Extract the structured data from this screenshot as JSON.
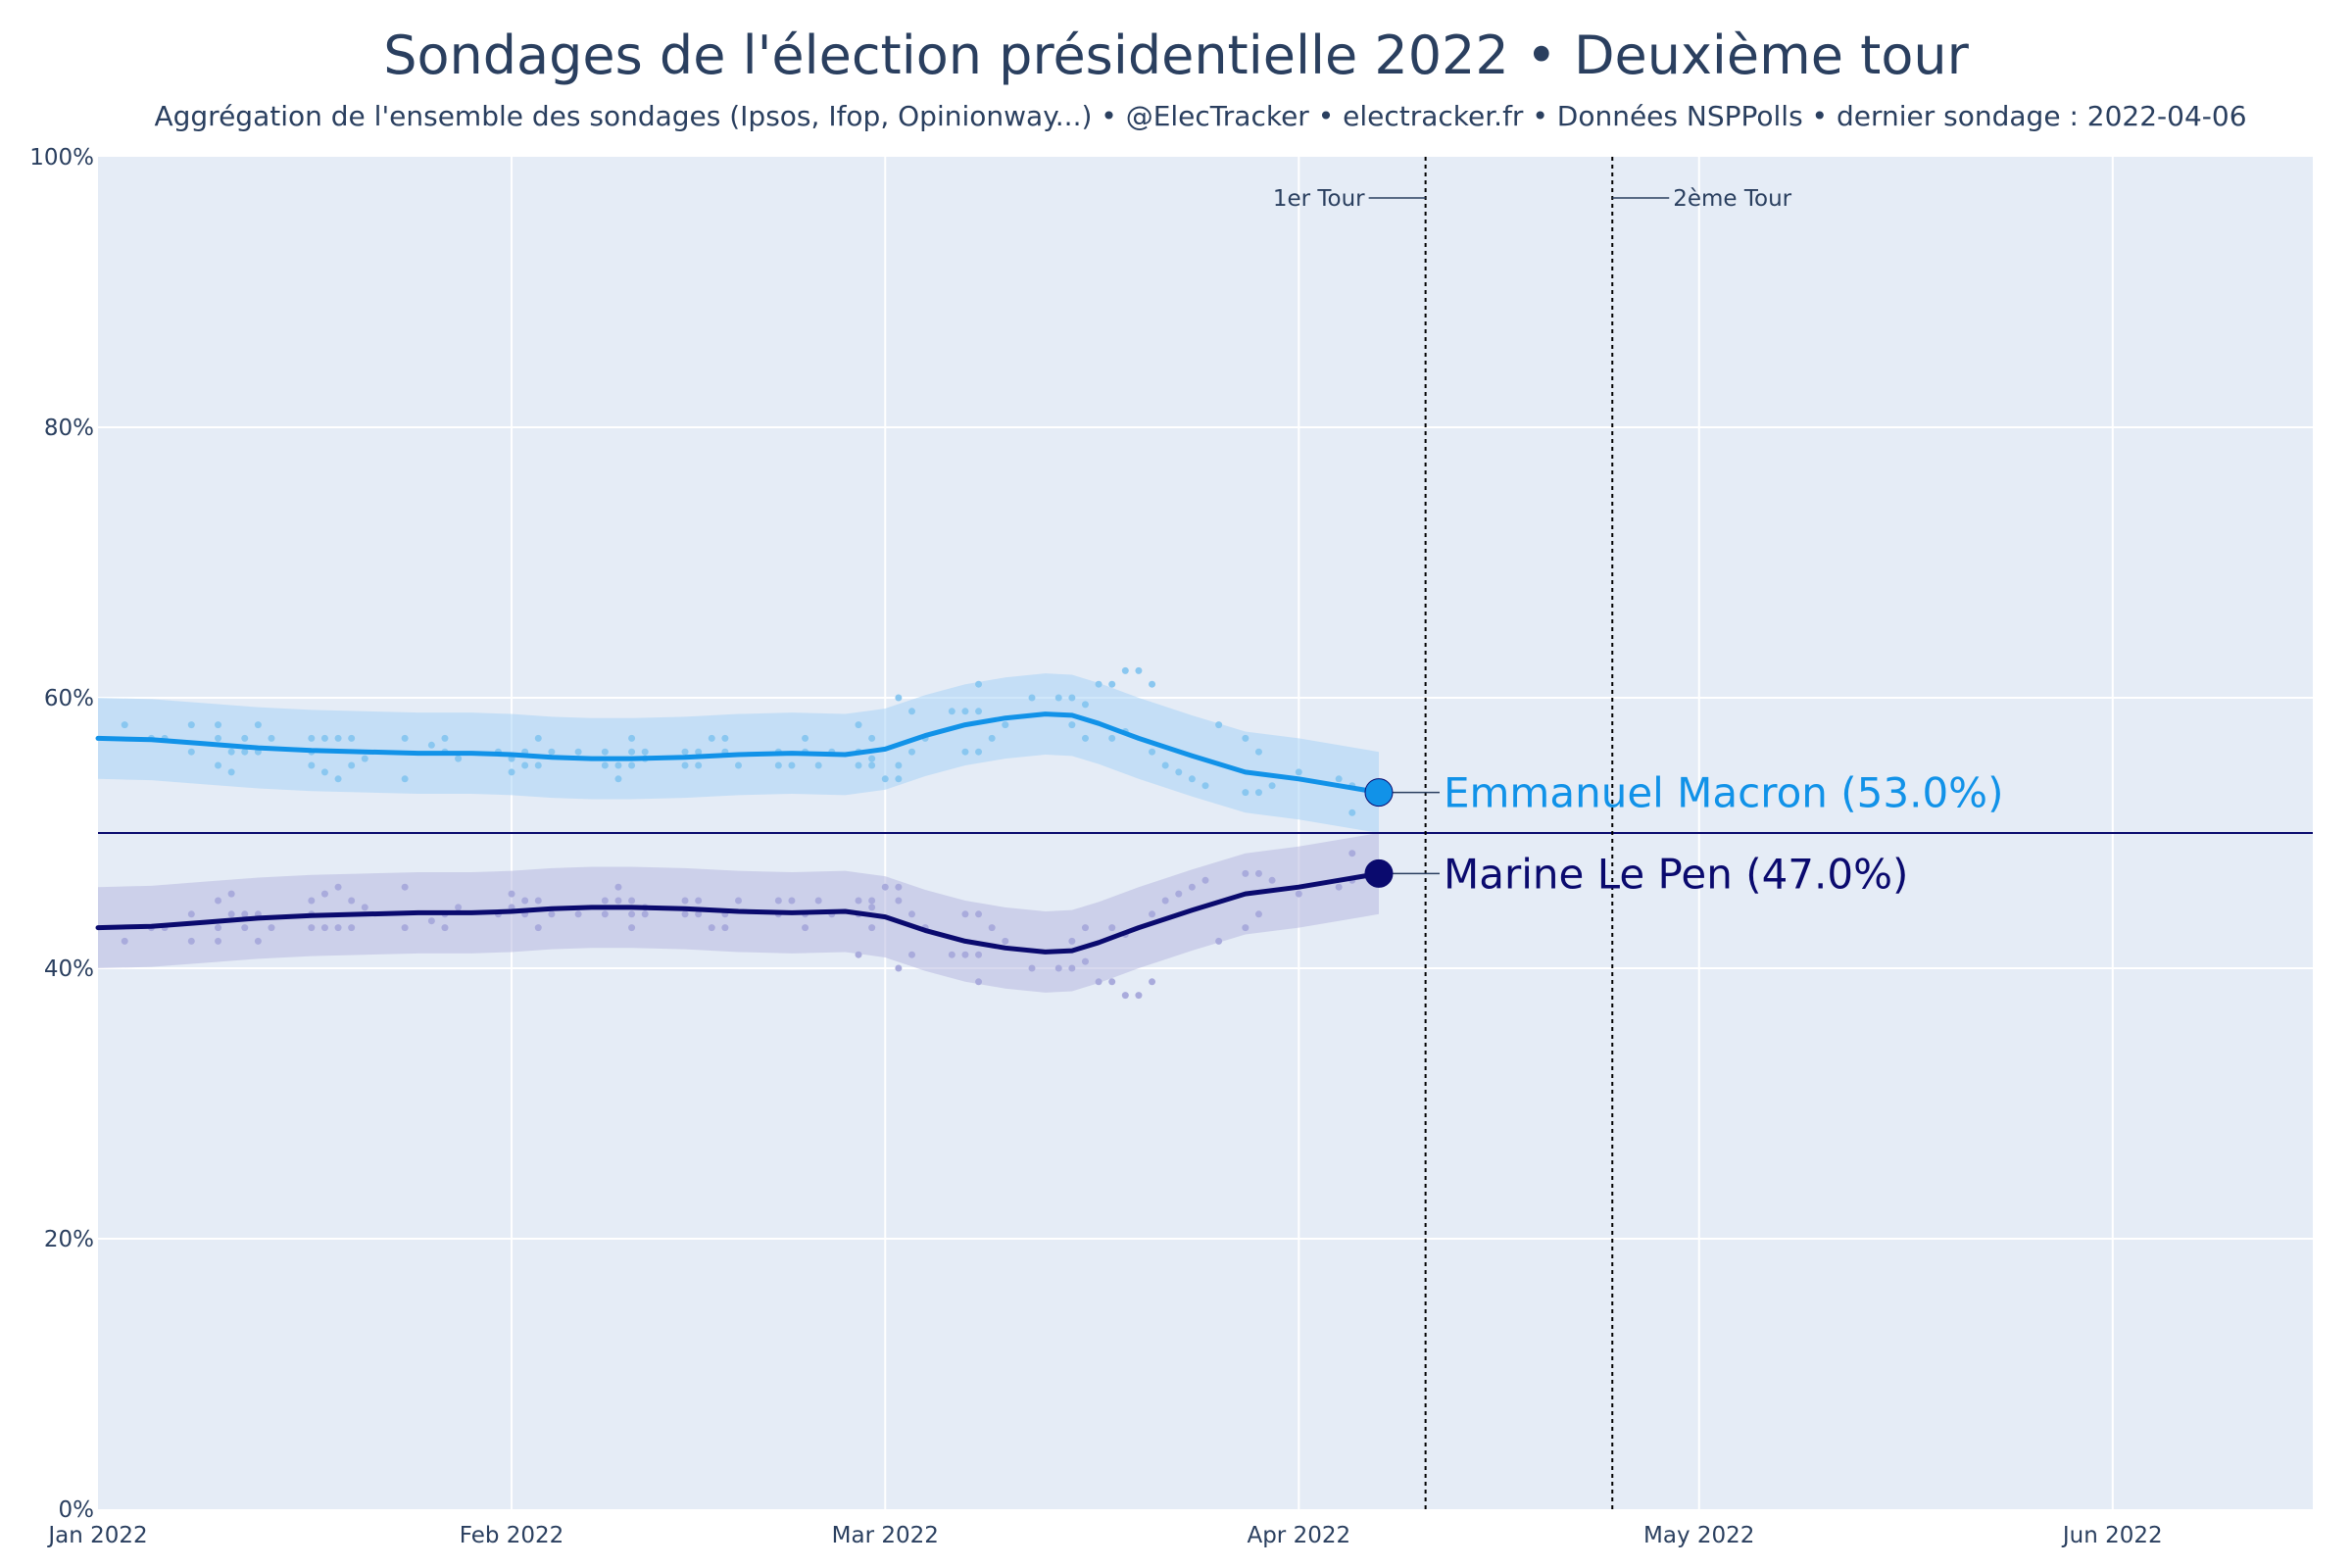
{
  "chart_data": {
    "type": "line",
    "title": "Sondages de l'élection présidentielle 2022 • Deuxième tour",
    "subtitle": "Aggrégation de l'ensemble des sondages (Ipsos, Ifop, Opinionway...) • @ElecTracker • electracker.fr • Données NSPPolls • dernier sondage : 2022-04-06",
    "xlabel": "",
    "ylabel": "",
    "xlim_days": [
      0,
      166
    ],
    "ylim": [
      0,
      100
    ],
    "x_ticks": [
      {
        "day": 0,
        "label": "Jan 2022"
      },
      {
        "day": 31,
        "label": "Feb 2022"
      },
      {
        "day": 59,
        "label": "Mar 2022"
      },
      {
        "day": 90,
        "label": "Apr 2022"
      },
      {
        "day": 120,
        "label": "May 2022"
      },
      {
        "day": 151,
        "label": "Jun 2022"
      }
    ],
    "y_ticks": [
      {
        "value": 0,
        "label": "0%"
      },
      {
        "value": 20,
        "label": "20%"
      },
      {
        "value": 40,
        "label": "40%"
      },
      {
        "value": 60,
        "label": "60%"
      },
      {
        "value": 80,
        "label": "80%"
      },
      {
        "value": 100,
        "label": "100%"
      }
    ],
    "reference_line_y": 50,
    "events": [
      {
        "day": 99.5,
        "label": "1er Tour",
        "side": "left"
      },
      {
        "day": 113.5,
        "label": "2ème Tour",
        "side": "right"
      }
    ],
    "series": [
      {
        "name": "Emmanuel Macron",
        "end_label": "Emmanuel Macron (53.0%)",
        "color": "#1192e8",
        "band_color": "#a9d4f5",
        "point_color": "#8ac7f0",
        "band_halfwidth": 3,
        "last_value": 53.0,
        "trend": [
          [
            0,
            57
          ],
          [
            4,
            56.9
          ],
          [
            8,
            56.6
          ],
          [
            12,
            56.3
          ],
          [
            16,
            56.1
          ],
          [
            20,
            56
          ],
          [
            24,
            55.9
          ],
          [
            28,
            55.9
          ],
          [
            31,
            55.8
          ],
          [
            34,
            55.6
          ],
          [
            37,
            55.5
          ],
          [
            40,
            55.5
          ],
          [
            44,
            55.6
          ],
          [
            48,
            55.8
          ],
          [
            52,
            55.9
          ],
          [
            56,
            55.8
          ],
          [
            59,
            56.2
          ],
          [
            62,
            57.2
          ],
          [
            65,
            58
          ],
          [
            68,
            58.5
          ],
          [
            71,
            58.8
          ],
          [
            73,
            58.7
          ],
          [
            75,
            58.1
          ],
          [
            78,
            57
          ],
          [
            82,
            55.7
          ],
          [
            86,
            54.5
          ],
          [
            90,
            54
          ],
          [
            93,
            53.5
          ],
          [
            96,
            53
          ]
        ],
        "points": [
          [
            2,
            58
          ],
          [
            4,
            57
          ],
          [
            5,
            57
          ],
          [
            7,
            56
          ],
          [
            7,
            58
          ],
          [
            9,
            58
          ],
          [
            9,
            57
          ],
          [
            9,
            55
          ],
          [
            10,
            56
          ],
          [
            10,
            54.5
          ],
          [
            11,
            57
          ],
          [
            11,
            56
          ],
          [
            12,
            58
          ],
          [
            12,
            56
          ],
          [
            13,
            57
          ],
          [
            16,
            56
          ],
          [
            16,
            55
          ],
          [
            16,
            57
          ],
          [
            17,
            54.5
          ],
          [
            17,
            57
          ],
          [
            18,
            54
          ],
          [
            18,
            57
          ],
          [
            19,
            55
          ],
          [
            19,
            57
          ],
          [
            20,
            55.5
          ],
          [
            23,
            54
          ],
          [
            23,
            57
          ],
          [
            25,
            56.5
          ],
          [
            26,
            56
          ],
          [
            26,
            57
          ],
          [
            27,
            55.5
          ],
          [
            30,
            56
          ],
          [
            31,
            55.5
          ],
          [
            31,
            54.5
          ],
          [
            32,
            56
          ],
          [
            32,
            55
          ],
          [
            33,
            55
          ],
          [
            33,
            57
          ],
          [
            34,
            56
          ],
          [
            36,
            56
          ],
          [
            38,
            55
          ],
          [
            38,
            56
          ],
          [
            39,
            55
          ],
          [
            39,
            54
          ],
          [
            40,
            56
          ],
          [
            40,
            57
          ],
          [
            40,
            55
          ],
          [
            41,
            55.5
          ],
          [
            41,
            56
          ],
          [
            44,
            55
          ],
          [
            44,
            56
          ],
          [
            45,
            56
          ],
          [
            45,
            55
          ],
          [
            46,
            57
          ],
          [
            47,
            56
          ],
          [
            47,
            57
          ],
          [
            48,
            55
          ],
          [
            51,
            56
          ],
          [
            51,
            55
          ],
          [
            52,
            55
          ],
          [
            53,
            56
          ],
          [
            53,
            57
          ],
          [
            54,
            55
          ],
          [
            55,
            56
          ],
          [
            57,
            55
          ],
          [
            57,
            56
          ],
          [
            58,
            57
          ],
          [
            58,
            55
          ],
          [
            58,
            55.5
          ],
          [
            57,
            58
          ],
          [
            59,
            54
          ],
          [
            60,
            54
          ],
          [
            60,
            55
          ],
          [
            61,
            56
          ],
          [
            61,
            59
          ],
          [
            60,
            60
          ],
          [
            62,
            57
          ],
          [
            64,
            59
          ],
          [
            65,
            56
          ],
          [
            65,
            59
          ],
          [
            66,
            56
          ],
          [
            66,
            59
          ],
          [
            67,
            57
          ],
          [
            66,
            61
          ],
          [
            68,
            58
          ],
          [
            70,
            60
          ],
          [
            72,
            60
          ],
          [
            73,
            60
          ],
          [
            73,
            58
          ],
          [
            74,
            57
          ],
          [
            74,
            59.5
          ],
          [
            75,
            61
          ],
          [
            76,
            61
          ],
          [
            76,
            57
          ],
          [
            77,
            57.5
          ],
          [
            77,
            62
          ],
          [
            78,
            62
          ],
          [
            79,
            61
          ],
          [
            79,
            56
          ],
          [
            80,
            55
          ],
          [
            81,
            54.5
          ],
          [
            82,
            54
          ],
          [
            83,
            53.5
          ],
          [
            84,
            58
          ],
          [
            86,
            53
          ],
          [
            86,
            57
          ],
          [
            87,
            53
          ],
          [
            87,
            56
          ],
          [
            88,
            53.5
          ],
          [
            90,
            54.5
          ],
          [
            94,
            53.5
          ],
          [
            94,
            51.5
          ],
          [
            93,
            54
          ]
        ]
      },
      {
        "name": "Marine Le Pen",
        "end_label": "Marine Le Pen (47.0%)",
        "color": "#0a0a6e",
        "band_color": "#b8b9e0",
        "point_color": "#a9abdc",
        "band_halfwidth": 3,
        "last_value": 47.0,
        "trend": [
          [
            0,
            43
          ],
          [
            4,
            43.1
          ],
          [
            8,
            43.4
          ],
          [
            12,
            43.7
          ],
          [
            16,
            43.9
          ],
          [
            20,
            44
          ],
          [
            24,
            44.1
          ],
          [
            28,
            44.1
          ],
          [
            31,
            44.2
          ],
          [
            34,
            44.4
          ],
          [
            37,
            44.5
          ],
          [
            40,
            44.5
          ],
          [
            44,
            44.4
          ],
          [
            48,
            44.2
          ],
          [
            52,
            44.1
          ],
          [
            56,
            44.2
          ],
          [
            59,
            43.8
          ],
          [
            62,
            42.8
          ],
          [
            65,
            42
          ],
          [
            68,
            41.5
          ],
          [
            71,
            41.2
          ],
          [
            73,
            41.3
          ],
          [
            75,
            41.9
          ],
          [
            78,
            43
          ],
          [
            82,
            44.3
          ],
          [
            86,
            45.5
          ],
          [
            90,
            46
          ],
          [
            93,
            46.5
          ],
          [
            96,
            47
          ]
        ],
        "points": [
          [
            2,
            42
          ],
          [
            4,
            43
          ],
          [
            5,
            43
          ],
          [
            7,
            44
          ],
          [
            7,
            42
          ],
          [
            9,
            42
          ],
          [
            9,
            43
          ],
          [
            9,
            45
          ],
          [
            10,
            44
          ],
          [
            10,
            45.5
          ],
          [
            11,
            43
          ],
          [
            11,
            44
          ],
          [
            12,
            42
          ],
          [
            12,
            44
          ],
          [
            13,
            43
          ],
          [
            16,
            44
          ],
          [
            16,
            45
          ],
          [
            16,
            43
          ],
          [
            17,
            45.5
          ],
          [
            17,
            43
          ],
          [
            18,
            46
          ],
          [
            18,
            43
          ],
          [
            19,
            45
          ],
          [
            19,
            43
          ],
          [
            20,
            44.5
          ],
          [
            23,
            46
          ],
          [
            23,
            43
          ],
          [
            25,
            43.5
          ],
          [
            26,
            44
          ],
          [
            26,
            43
          ],
          [
            27,
            44.5
          ],
          [
            30,
            44
          ],
          [
            31,
            44.5
          ],
          [
            31,
            45.5
          ],
          [
            32,
            44
          ],
          [
            32,
            45
          ],
          [
            33,
            45
          ],
          [
            33,
            43
          ],
          [
            34,
            44
          ],
          [
            36,
            44
          ],
          [
            38,
            45
          ],
          [
            38,
            44
          ],
          [
            39,
            45
          ],
          [
            39,
            46
          ],
          [
            40,
            44
          ],
          [
            40,
            43
          ],
          [
            40,
            45
          ],
          [
            41,
            44.5
          ],
          [
            41,
            44
          ],
          [
            44,
            45
          ],
          [
            44,
            44
          ],
          [
            45,
            44
          ],
          [
            45,
            45
          ],
          [
            46,
            43
          ],
          [
            47,
            44
          ],
          [
            47,
            43
          ],
          [
            48,
            45
          ],
          [
            51,
            44
          ],
          [
            51,
            45
          ],
          [
            52,
            45
          ],
          [
            53,
            44
          ],
          [
            53,
            43
          ],
          [
            54,
            45
          ],
          [
            55,
            44
          ],
          [
            57,
            45
          ],
          [
            57,
            44
          ],
          [
            58,
            43
          ],
          [
            58,
            45
          ],
          [
            58,
            44.5
          ],
          [
            57,
            41
          ],
          [
            59,
            46
          ],
          [
            60,
            46
          ],
          [
            60,
            45
          ],
          [
            61,
            44
          ],
          [
            61,
            41
          ],
          [
            60,
            40
          ],
          [
            62,
            43
          ],
          [
            64,
            41
          ],
          [
            65,
            44
          ],
          [
            65,
            41
          ],
          [
            66,
            44
          ],
          [
            66,
            41
          ],
          [
            67,
            43
          ],
          [
            66,
            39
          ],
          [
            68,
            42
          ],
          [
            70,
            40
          ],
          [
            72,
            40
          ],
          [
            73,
            40
          ],
          [
            73,
            42
          ],
          [
            74,
            43
          ],
          [
            74,
            40.5
          ],
          [
            75,
            39
          ],
          [
            76,
            39
          ],
          [
            76,
            43
          ],
          [
            77,
            42.5
          ],
          [
            77,
            38
          ],
          [
            78,
            38
          ],
          [
            79,
            39
          ],
          [
            79,
            44
          ],
          [
            80,
            45
          ],
          [
            81,
            45.5
          ],
          [
            82,
            46
          ],
          [
            83,
            46.5
          ],
          [
            84,
            42
          ],
          [
            86,
            47
          ],
          [
            86,
            43
          ],
          [
            87,
            47
          ],
          [
            87,
            44
          ],
          [
            88,
            46.5
          ],
          [
            90,
            45.5
          ],
          [
            94,
            46.5
          ],
          [
            94,
            48.5
          ],
          [
            93,
            46
          ]
        ]
      }
    ]
  }
}
